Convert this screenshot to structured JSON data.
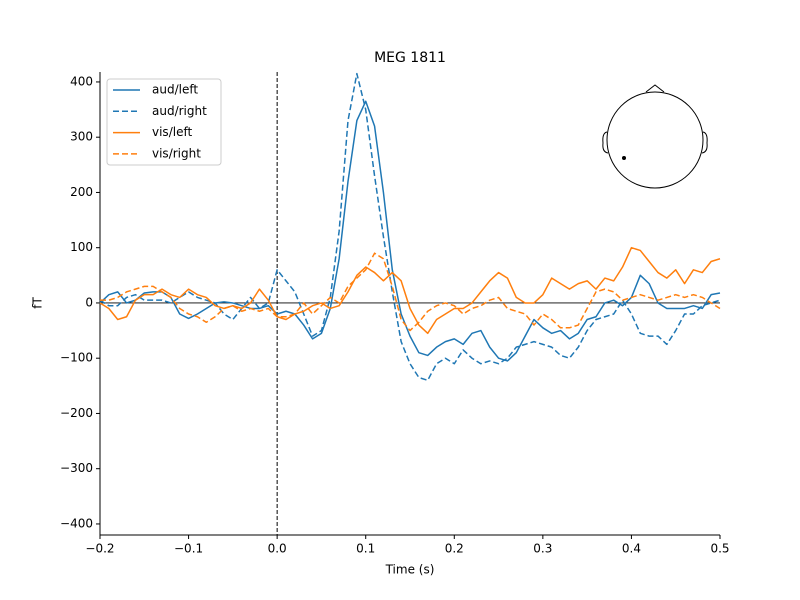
{
  "chart_data": {
    "type": "line",
    "title": "MEG 1811",
    "xlabel": "Time (s)",
    "ylabel": "fT",
    "x": [
      -0.2,
      -0.19,
      -0.18,
      -0.17,
      -0.16,
      -0.15,
      -0.14,
      -0.13,
      -0.12,
      -0.11,
      -0.1,
      -0.09,
      -0.08,
      -0.07,
      -0.06,
      -0.05,
      -0.04,
      -0.03,
      -0.02,
      -0.01,
      0,
      0.01,
      0.02,
      0.03,
      0.04,
      0.05,
      0.06,
      0.07,
      0.08,
      0.09,
      0.1,
      0.11,
      0.12,
      0.13,
      0.14,
      0.15,
      0.16,
      0.17,
      0.18,
      0.19,
      0.2,
      0.21,
      0.22,
      0.23,
      0.24,
      0.25,
      0.26,
      0.27,
      0.28,
      0.29,
      0.3,
      0.31,
      0.32,
      0.33,
      0.34,
      0.35,
      0.36,
      0.37,
      0.38,
      0.39,
      0.4,
      0.41,
      0.42,
      0.43,
      0.44,
      0.45,
      0.46,
      0.47,
      0.48,
      0.49,
      0.5
    ],
    "series": [
      {
        "name": "aud/left",
        "color": "#1f77b4",
        "linestyle": "solid",
        "values": [
          0,
          15,
          20,
          0,
          5,
          18,
          20,
          20,
          10,
          -20,
          -28,
          -20,
          -10,
          0,
          2,
          0,
          -5,
          -10,
          -10,
          -5,
          -20,
          -15,
          -20,
          -40,
          -65,
          -55,
          -10,
          80,
          220,
          330,
          365,
          320,
          200,
          60,
          -20,
          -60,
          -90,
          -95,
          -80,
          -70,
          -65,
          -75,
          -55,
          -50,
          -80,
          -100,
          -105,
          -90,
          -60,
          -30,
          -45,
          -55,
          -50,
          -65,
          -55,
          -30,
          -25,
          0,
          5,
          -5,
          10,
          50,
          35,
          0,
          -10,
          -10,
          -10,
          -5,
          -10,
          15,
          18
        ]
      },
      {
        "name": "aud/right",
        "color": "#1f77b4",
        "linestyle": "dashed",
        "values": [
          5,
          -5,
          -5,
          10,
          15,
          5,
          5,
          5,
          0,
          10,
          20,
          10,
          5,
          0,
          -20,
          -30,
          -10,
          10,
          -10,
          0,
          60,
          40,
          20,
          -20,
          -60,
          -50,
          10,
          130,
          330,
          415,
          350,
          230,
          120,
          20,
          -70,
          -110,
          -135,
          -140,
          -110,
          -100,
          -110,
          -85,
          -100,
          -110,
          -105,
          -110,
          -100,
          -80,
          -75,
          -70,
          -75,
          -80,
          -95,
          -100,
          -80,
          -50,
          -30,
          -25,
          -20,
          5,
          -20,
          -55,
          -60,
          -60,
          -75,
          -50,
          -20,
          -20,
          -5,
          0,
          5
        ]
      },
      {
        "name": "vis/left",
        "color": "#ff7f0e",
        "linestyle": "solid",
        "values": [
          0,
          -10,
          -30,
          -25,
          5,
          15,
          15,
          25,
          15,
          10,
          25,
          15,
          10,
          -5,
          -10,
          -5,
          -10,
          0,
          25,
          5,
          -25,
          -30,
          -20,
          -15,
          -5,
          0,
          -10,
          -5,
          20,
          50,
          65,
          55,
          40,
          55,
          40,
          -10,
          -40,
          -55,
          -30,
          -20,
          -10,
          -10,
          0,
          20,
          40,
          55,
          45,
          10,
          0,
          0,
          15,
          45,
          35,
          25,
          35,
          40,
          25,
          45,
          40,
          65,
          100,
          95,
          75,
          55,
          45,
          60,
          35,
          60,
          55,
          75,
          80
        ]
      },
      {
        "name": "vis/right",
        "color": "#ff7f0e",
        "linestyle": "dashed",
        "values": [
          5,
          5,
          10,
          20,
          25,
          30,
          30,
          20,
          10,
          -10,
          -20,
          -25,
          -35,
          -25,
          -10,
          -5,
          -15,
          -10,
          -15,
          -10,
          -25,
          -25,
          -20,
          0,
          -20,
          -5,
          10,
          0,
          30,
          45,
          60,
          90,
          80,
          30,
          -30,
          -50,
          -35,
          -15,
          -5,
          0,
          -5,
          -20,
          -10,
          -5,
          5,
          10,
          -10,
          -15,
          -20,
          -40,
          -20,
          -30,
          -45,
          -45,
          -40,
          -10,
          20,
          25,
          20,
          5,
          10,
          15,
          10,
          5,
          10,
          15,
          10,
          15,
          10,
          0,
          -10
        ]
      }
    ],
    "xlim": [
      -0.2,
      0.5
    ],
    "xticks": [
      {
        "value": -0.2,
        "label": "−0.2"
      },
      {
        "value": -0.1,
        "label": "−0.1"
      },
      {
        "value": 0,
        "label": "0.0"
      },
      0.1,
      0.2,
      0.3,
      0.4,
      0.5
    ],
    "ylim": [
      -420,
      418
    ],
    "yticks": [
      {
        "value": -400,
        "label": "−400"
      },
      {
        "value": -300,
        "label": "−300"
      },
      {
        "value": -200,
        "label": "−200"
      },
      {
        "value": -100,
        "label": "−100"
      },
      0,
      100,
      200,
      300,
      400
    ],
    "legend": "upper left"
  }
}
